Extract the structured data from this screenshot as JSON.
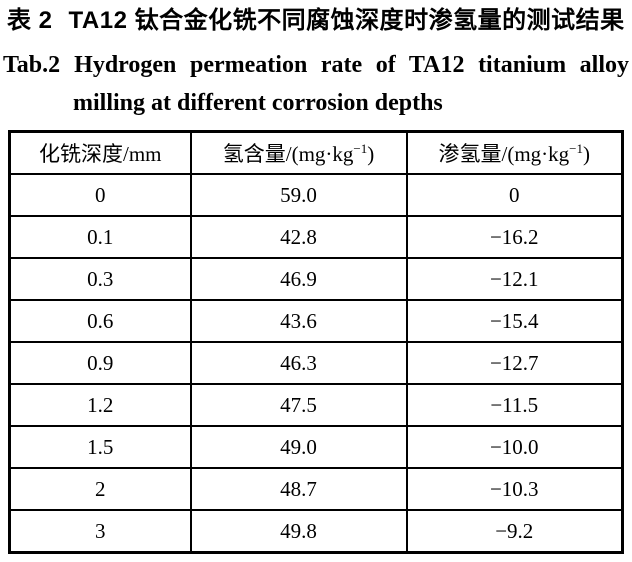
{
  "colors": {
    "text": "#000000",
    "background": "#ffffff",
    "table_border": "#000000"
  },
  "title": {
    "zh_label": "表 2",
    "zh_text": "TA12 钛合金化铣不同腐蚀深度时渗氢量的测试结果",
    "en_label": "Tab.2",
    "en_text": "Hydrogen permeation rate of TA12 titanium alloy",
    "en_text2": "milling at different corrosion depths"
  },
  "table": {
    "headers": [
      {
        "text": "化铣深度/mm",
        "sup": "",
        "close": ""
      },
      {
        "text": "氢含量/(mg·kg",
        "sup": "−1",
        "close": ")"
      },
      {
        "text": "渗氢量/(mg·kg",
        "sup": "−1",
        "close": ")"
      }
    ],
    "rows": [
      [
        "0",
        "59.0",
        "0"
      ],
      [
        "0.1",
        "42.8",
        "−16.2"
      ],
      [
        "0.3",
        "46.9",
        "−12.1"
      ],
      [
        "0.6",
        "43.6",
        "−15.4"
      ],
      [
        "0.9",
        "46.3",
        "−12.7"
      ],
      [
        "1.2",
        "47.5",
        "−11.5"
      ],
      [
        "1.5",
        "49.0",
        "−10.0"
      ],
      [
        "2",
        "48.7",
        "−10.3"
      ],
      [
        "3",
        "49.8",
        "−9.2"
      ]
    ]
  }
}
